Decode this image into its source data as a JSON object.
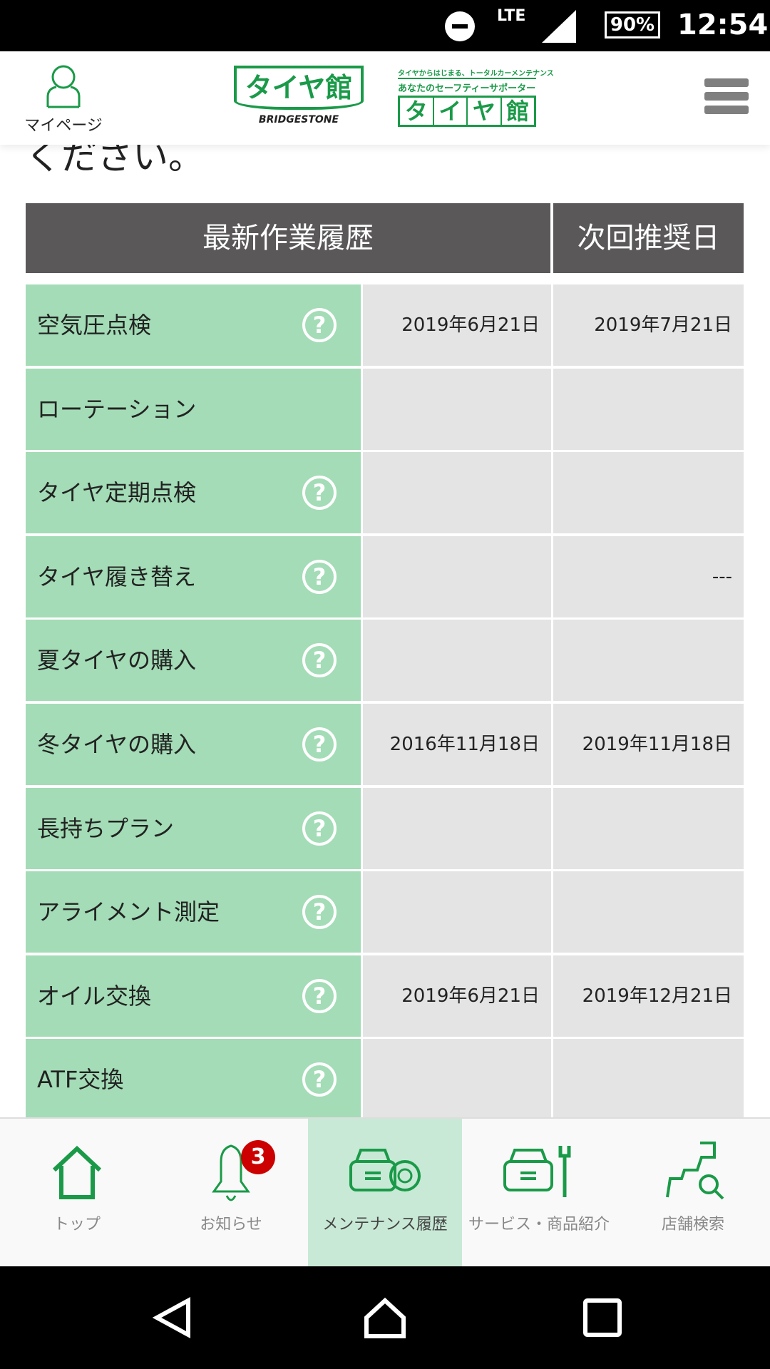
{
  "status_bar": {
    "network": "LTE",
    "battery": "90%",
    "time": "12:54"
  },
  "header": {
    "mypage_label": "マイページ",
    "logo_main": "タイヤ館",
    "logo_brand": "BRIDGESTONE",
    "logo2_tagline": "タイヤからはじまる、トータルカーメンテナンス",
    "logo2_sub": "あなたのセーフティーサポーター",
    "logo2_chars": [
      "タ",
      "イ",
      "ヤ",
      "館"
    ]
  },
  "lead_text": "ください。",
  "table": {
    "headers": [
      "最新作業履歴",
      "次回推奨日"
    ],
    "rows": [
      {
        "name": "空気圧点検",
        "help": true,
        "last": "2019年6月21日",
        "next": "2019年7月21日"
      },
      {
        "name": "ローテーション",
        "help": false,
        "last": "",
        "next": ""
      },
      {
        "name": "タイヤ定期点検",
        "help": true,
        "last": "",
        "next": ""
      },
      {
        "name": "タイヤ履き替え",
        "help": true,
        "last": "",
        "next": "---"
      },
      {
        "name": "夏タイヤの購入",
        "help": true,
        "last": "",
        "next": ""
      },
      {
        "name": "冬タイヤの購入",
        "help": true,
        "last": "2016年11月18日",
        "next": "2019年11月18日"
      },
      {
        "name": "長持ちプラン",
        "help": true,
        "last": "",
        "next": ""
      },
      {
        "name": "アライメント測定",
        "help": true,
        "last": "",
        "next": ""
      },
      {
        "name": "オイル交換",
        "help": true,
        "last": "2019年6月21日",
        "next": "2019年12月21日"
      },
      {
        "name": "ATF交換",
        "help": true,
        "last": "",
        "next": ""
      }
    ],
    "help_glyph": "?"
  },
  "bottom_nav": {
    "items": [
      {
        "label": "トップ",
        "icon": "home-icon"
      },
      {
        "label": "お知らせ",
        "icon": "bell-icon",
        "badge": "3"
      },
      {
        "label": "メンテナンス履歴",
        "icon": "car-tire-icon",
        "active": true
      },
      {
        "label": "サービス・商品紹介",
        "icon": "car-wrench-icon"
      },
      {
        "label": "店舗検索",
        "icon": "map-search-icon"
      }
    ]
  },
  "colors": {
    "brand_green": "#1a9a48",
    "cell_green": "#a3dcb6",
    "cell_gray": "#e4e4e4",
    "header_dark": "#5a5859",
    "active_nav": "#c8e9d6",
    "badge_red": "#cc0000"
  }
}
